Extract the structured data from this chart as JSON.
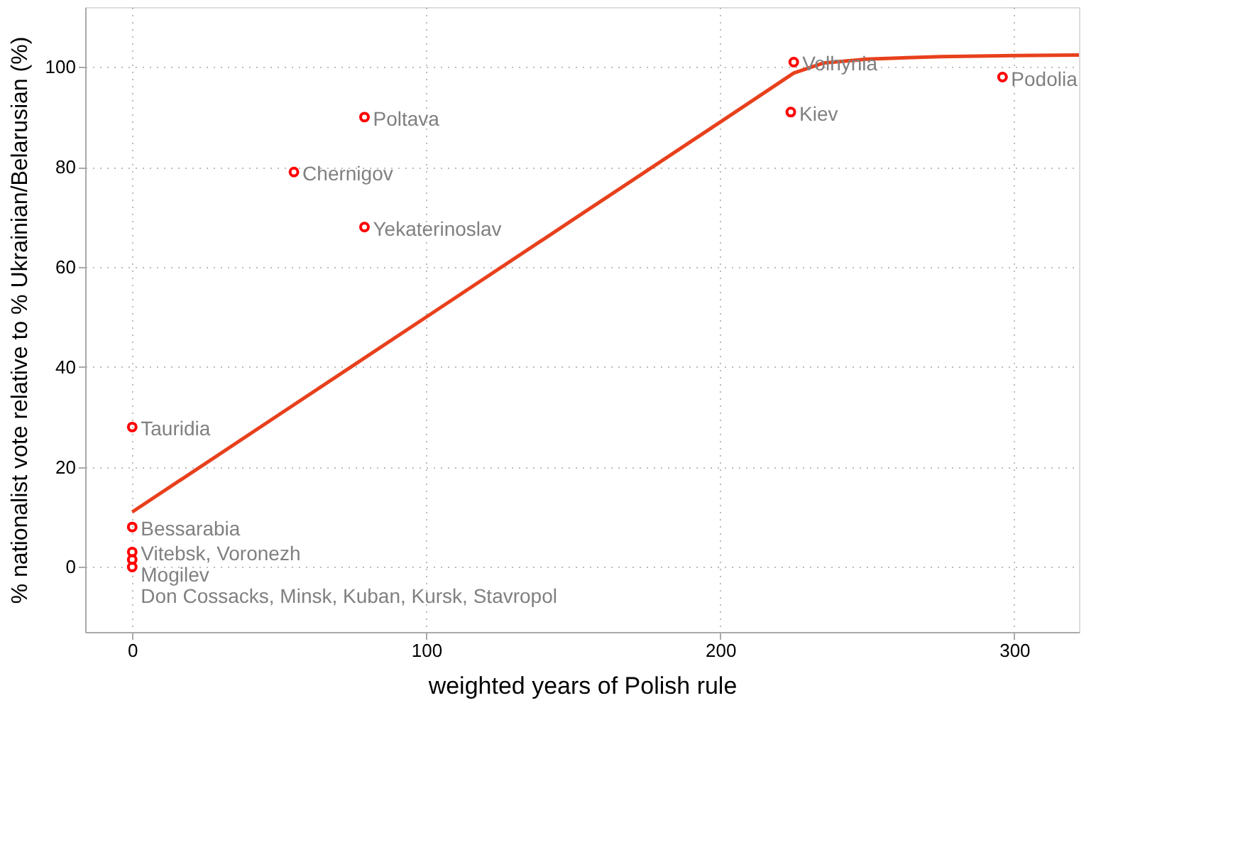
{
  "chart_data": {
    "type": "scatter",
    "xlabel": "weighted years of Polish rule",
    "ylabel": "% nationalist vote relative to % Ukrainian/Belarusian (%)",
    "xlim": [
      -16,
      322
    ],
    "ylim": [
      -13,
      112
    ],
    "xticks": [
      0,
      100,
      200,
      300
    ],
    "yticks": [
      0,
      20,
      40,
      60,
      80,
      100
    ],
    "grid": true,
    "series": [
      {
        "color": "#ff0000",
        "marker": "circle",
        "x": [
          79,
          55,
          79,
          225,
          224,
          296,
          0,
          0,
          0,
          0,
          0
        ],
        "values": [
          90,
          79,
          68,
          101,
          91,
          98,
          28,
          8,
          3,
          1.5,
          0
        ]
      },
      {
        "type": "line",
        "color": "#e8401c",
        "line_style": "solid",
        "x": [
          0,
          50,
          100,
          150,
          200,
          225,
          235,
          250,
          275,
          300,
          322
        ],
        "values": [
          11,
          30.5,
          50,
          69.5,
          89,
          98.8,
          100.8,
          101.6,
          102.1,
          102.3,
          102.4
        ]
      }
    ],
    "annotations": [
      {
        "text": "Poltava",
        "x": 79,
        "y": 90
      },
      {
        "text": "Chernigov",
        "x": 55,
        "y": 79
      },
      {
        "text": "Yekaterinoslav",
        "x": 79,
        "y": 68
      },
      {
        "text": "Volhynia",
        "x": 225,
        "y": 101
      },
      {
        "text": "Kiev",
        "x": 224,
        "y": 91
      },
      {
        "text": "Podolia",
        "x": 296,
        "y": 98
      },
      {
        "text": "Tauridia",
        "x": 0,
        "y": 28
      },
      {
        "text": "Bessarabia",
        "x": 0,
        "y": 8
      },
      {
        "text": "Vitebsk, Voronezh",
        "x": 0,
        "y": 3
      },
      {
        "text": "Mogilev",
        "x": 0,
        "y": 1.5
      },
      {
        "text": "Don Cossacks, Minsk, Kuban, Kursk, Stavropol",
        "x": 0,
        "y": 0
      }
    ]
  }
}
